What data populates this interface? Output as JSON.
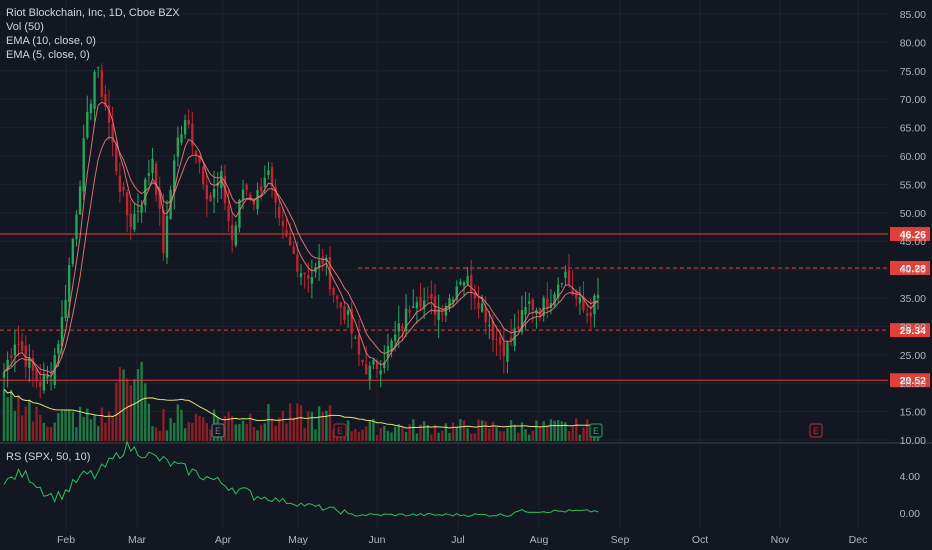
{
  "legend": {
    "symbol": "Riot Blockchain, Inc, 1D, Cboe BZX",
    "vol": "Vol (50)",
    "ema10": "EMA (10, close, 0)",
    "ema5": "EMA (5, close, 0)"
  },
  "rs_legend": "RS (SPX, 50, 10)",
  "colors": {
    "background": "#131722",
    "up": "#26a65b",
    "down": "#c0262f",
    "up_volume": "#1f7a44",
    "down_volume": "#8e1f27",
    "ema": "#f07a7a",
    "vol_ma": "#e6e27a",
    "rs_line": "#2fbf5a",
    "level_line": "#e0403a",
    "axis_text": "#b2b5be"
  },
  "chart_data": {
    "type": "candlestick",
    "x_labels": [
      "Feb",
      "Mar",
      "Apr",
      "May",
      "Jun",
      "Jul",
      "Aug",
      "Sep",
      "Oct",
      "Nov",
      "Dec"
    ],
    "y_ticks": [
      10,
      15,
      20,
      25,
      30,
      35,
      40,
      45,
      50,
      55,
      60,
      65,
      70,
      75,
      80,
      85
    ],
    "y_tick_labels": [
      "10.00",
      "15.00",
      "20.00",
      "25.00",
      "30.00",
      "35.00",
      "40.00",
      "45.00",
      "50.00",
      "55.00",
      "60.00",
      "65.00",
      "70.00",
      "75.00",
      "80.00",
      "85.00"
    ],
    "ylim": [
      10,
      85
    ],
    "price_levels": [
      {
        "label": "46.26",
        "value": 46.26,
        "style": "solid"
      },
      {
        "label": "40.28",
        "value": 40.28,
        "style": "dashed"
      },
      {
        "label": "29.34",
        "value": 29.34,
        "style": "dashed"
      },
      {
        "label": "20.52",
        "value": 20.52,
        "style": "solid"
      }
    ],
    "earnings_marker": "E",
    "close_path": [
      [
        "Jan",
        22
      ],
      [
        "Jan",
        28
      ],
      [
        "Jan",
        24
      ],
      [
        "Jan",
        20
      ],
      [
        "Feb",
        21
      ],
      [
        "Feb",
        30
      ],
      [
        "Feb",
        45
      ],
      [
        "Feb",
        62
      ],
      [
        "Feb",
        76
      ],
      [
        "Feb",
        68
      ],
      [
        "Feb",
        56
      ],
      [
        "Feb",
        48
      ],
      [
        "Mar",
        52
      ],
      [
        "Mar",
        60
      ],
      [
        "Mar",
        43
      ],
      [
        "Mar",
        62
      ],
      [
        "Mar",
        66
      ],
      [
        "Mar",
        60
      ],
      [
        "Mar",
        52
      ],
      [
        "Apr",
        56
      ],
      [
        "Apr",
        45
      ],
      [
        "Apr",
        55
      ],
      [
        "Apr",
        52
      ],
      [
        "Apr",
        58
      ],
      [
        "Apr",
        48
      ],
      [
        "Apr",
        44
      ],
      [
        "Apr",
        40
      ],
      [
        "Apr",
        39
      ],
      [
        "May",
        42
      ],
      [
        "May",
        35
      ],
      [
        "May",
        32
      ],
      [
        "May",
        25
      ],
      [
        "May",
        22
      ],
      [
        "May",
        24
      ],
      [
        "Jun",
        27
      ],
      [
        "Jun",
        31
      ],
      [
        "Jun",
        36
      ],
      [
        "Jun",
        34
      ],
      [
        "Jun",
        33
      ],
      [
        "Jun",
        35
      ],
      [
        "Jul",
        39
      ],
      [
        "Jul",
        37
      ],
      [
        "Jul",
        33
      ],
      [
        "Jul",
        28
      ],
      [
        "Jul",
        26
      ],
      [
        "Jul",
        30
      ],
      [
        "Aug",
        34
      ],
      [
        "Aug",
        33
      ],
      [
        "Aug",
        36
      ],
      [
        "Aug",
        40
      ],
      [
        "Aug",
        35
      ],
      [
        "Aug",
        32
      ],
      [
        "Aug",
        35
      ]
    ],
    "rs_ticks": [
      0,
      4
    ],
    "rs_tick_labels": [
      "0.00",
      "4.00"
    ]
  }
}
